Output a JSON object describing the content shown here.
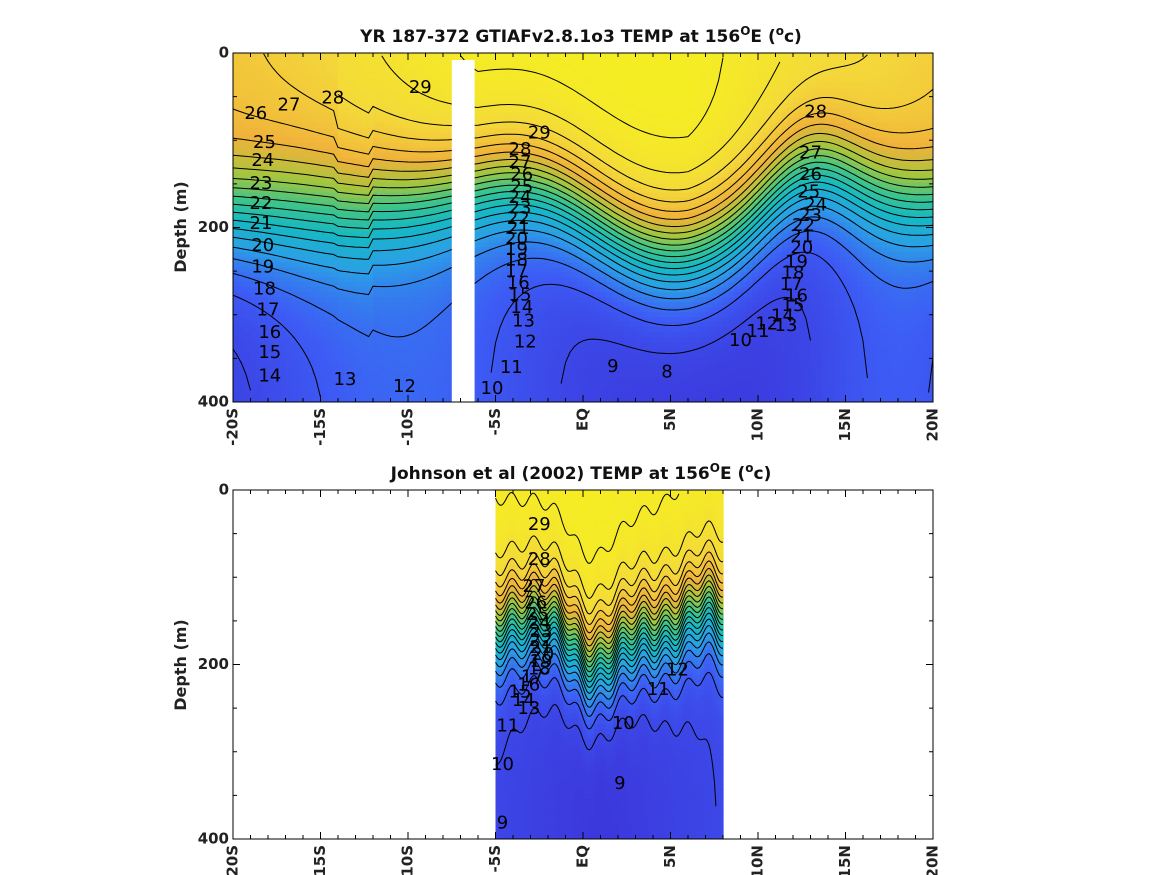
{
  "colors": {
    "colormap": [
      "#3b2fd6",
      "#3d5cf5",
      "#2ba0e6",
      "#16b8c4",
      "#3cc48a",
      "#a3c63e",
      "#f0b23a",
      "#f4d93a",
      "#f5f020"
    ],
    "contour": "#000000",
    "mask": "#ffffff",
    "axes": "#000000"
  },
  "chart_data": [
    {
      "type": "heatmap",
      "title": "YR 187-372 GTIAFv2.8.1o3 TEMP at 156",
      "title_sup": "O",
      "title_tail": "E (",
      "title_unit_sup": "o",
      "title_unit_tail": "c)",
      "xlabel": "",
      "ylabel": "Depth (m)",
      "xlim": [
        -20,
        20
      ],
      "ylim": [
        400,
        0
      ],
      "x_ticks": [
        -20,
        -15,
        -10,
        -5,
        0,
        5,
        10,
        15,
        20
      ],
      "x_tick_labels": [
        "-20S",
        "-15S",
        "-10S",
        "-5S",
        "EQ",
        "5N",
        "10N",
        "15N",
        "20N"
      ],
      "y_ticks": [
        0,
        200,
        400
      ],
      "y_tick_labels": [
        "0",
        "200",
        "400"
      ],
      "contour_interval": 1,
      "masked_x_range": [
        -7.5,
        -6.2
      ],
      "contour_labels": [
        {
          "x": -18.7,
          "y": 70,
          "v": "26"
        },
        {
          "x": -16.8,
          "y": 60,
          "v": "27"
        },
        {
          "x": -14.3,
          "y": 52,
          "v": "28"
        },
        {
          "x": -9.3,
          "y": 40,
          "v": "29"
        },
        {
          "x": -18.2,
          "y": 103,
          "v": "25"
        },
        {
          "x": -18.3,
          "y": 124,
          "v": "24"
        },
        {
          "x": -18.4,
          "y": 150,
          "v": "23"
        },
        {
          "x": -18.4,
          "y": 173,
          "v": "22"
        },
        {
          "x": -18.4,
          "y": 196,
          "v": "21"
        },
        {
          "x": -18.3,
          "y": 221,
          "v": "20"
        },
        {
          "x": -18.3,
          "y": 246,
          "v": "19"
        },
        {
          "x": -18.2,
          "y": 271,
          "v": "18"
        },
        {
          "x": -18.0,
          "y": 295,
          "v": "17"
        },
        {
          "x": -17.9,
          "y": 321,
          "v": "16"
        },
        {
          "x": -17.9,
          "y": 344,
          "v": "15"
        },
        {
          "x": -17.9,
          "y": 371,
          "v": "14"
        },
        {
          "x": -13.6,
          "y": 375,
          "v": "13"
        },
        {
          "x": -10.2,
          "y": 383,
          "v": "12"
        },
        {
          "x": -2.5,
          "y": 92,
          "v": "29"
        },
        {
          "x": -3.6,
          "y": 111,
          "v": "28"
        },
        {
          "x": -3.6,
          "y": 126,
          "v": "27"
        },
        {
          "x": -3.5,
          "y": 140,
          "v": "26"
        },
        {
          "x": -3.5,
          "y": 154,
          "v": "25"
        },
        {
          "x": -3.6,
          "y": 166,
          "v": "24"
        },
        {
          "x": -3.6,
          "y": 178,
          "v": "23"
        },
        {
          "x": -3.7,
          "y": 190,
          "v": "22"
        },
        {
          "x": -3.7,
          "y": 202,
          "v": "21"
        },
        {
          "x": -3.8,
          "y": 214,
          "v": "20"
        },
        {
          "x": -3.8,
          "y": 226,
          "v": "19"
        },
        {
          "x": -3.8,
          "y": 238,
          "v": "18"
        },
        {
          "x": -3.8,
          "y": 251,
          "v": "17"
        },
        {
          "x": -3.7,
          "y": 264,
          "v": "16"
        },
        {
          "x": -3.6,
          "y": 278,
          "v": "15"
        },
        {
          "x": -3.5,
          "y": 292,
          "v": "14"
        },
        {
          "x": -3.4,
          "y": 308,
          "v": "13"
        },
        {
          "x": -3.3,
          "y": 332,
          "v": "12"
        },
        {
          "x": -4.1,
          "y": 361,
          "v": "11"
        },
        {
          "x": -5.2,
          "y": 385,
          "v": "10"
        },
        {
          "x": 1.7,
          "y": 360,
          "v": "9"
        },
        {
          "x": 4.8,
          "y": 366,
          "v": "8"
        },
        {
          "x": 13.3,
          "y": 68,
          "v": "28"
        },
        {
          "x": 13.0,
          "y": 115,
          "v": "27"
        },
        {
          "x": 13.0,
          "y": 140,
          "v": "26"
        },
        {
          "x": 12.9,
          "y": 160,
          "v": "25"
        },
        {
          "x": 13.3,
          "y": 175,
          "v": "24"
        },
        {
          "x": 13.0,
          "y": 187,
          "v": "23"
        },
        {
          "x": 12.6,
          "y": 198,
          "v": "22"
        },
        {
          "x": 12.5,
          "y": 211,
          "v": "21"
        },
        {
          "x": 12.5,
          "y": 224,
          "v": "20"
        },
        {
          "x": 12.2,
          "y": 240,
          "v": "19"
        },
        {
          "x": 12.0,
          "y": 253,
          "v": "18"
        },
        {
          "x": 11.9,
          "y": 266,
          "v": "17"
        },
        {
          "x": 12.2,
          "y": 279,
          "v": "16"
        },
        {
          "x": 12.0,
          "y": 290,
          "v": "15"
        },
        {
          "x": 11.4,
          "y": 302,
          "v": "14"
        },
        {
          "x": 11.6,
          "y": 313,
          "v": "13"
        },
        {
          "x": 10.5,
          "y": 311,
          "v": "12"
        },
        {
          "x": 10.0,
          "y": 320,
          "v": "11"
        },
        {
          "x": 9.0,
          "y": 330,
          "v": "10"
        }
      ]
    },
    {
      "type": "heatmap",
      "title": "Johnson et al (2002) TEMP at 156",
      "title_sup": "O",
      "title_tail": "E (",
      "title_unit_sup": "o",
      "title_unit_tail": "c)",
      "xlabel": "",
      "ylabel": "Depth (m)",
      "xlim": [
        -20,
        20
      ],
      "ylim": [
        400,
        0
      ],
      "x_ticks": [
        -20,
        -15,
        -10,
        -5,
        0,
        5,
        10,
        15,
        20
      ],
      "x_tick_labels": [
        "-20S",
        "-15S",
        "-10S",
        "-5S",
        "EQ",
        "5N",
        "10N",
        "15N",
        "20N"
      ],
      "y_ticks": [
        0,
        200,
        400
      ],
      "y_tick_labels": [
        "0",
        "200",
        "400"
      ],
      "contour_interval": 1,
      "data_x_range": [
        -5.0,
        8.0
      ],
      "contour_labels": [
        {
          "x": -2.5,
          "y": 40,
          "v": "29"
        },
        {
          "x": -2.5,
          "y": 80,
          "v": "28"
        },
        {
          "x": -2.8,
          "y": 111,
          "v": "27"
        },
        {
          "x": -2.7,
          "y": 130,
          "v": "26"
        },
        {
          "x": -2.6,
          "y": 143,
          "v": "25"
        },
        {
          "x": -2.5,
          "y": 153,
          "v": "24"
        },
        {
          "x": -2.4,
          "y": 163,
          "v": "23"
        },
        {
          "x": -2.4,
          "y": 173,
          "v": "22"
        },
        {
          "x": -2.4,
          "y": 181,
          "v": "21"
        },
        {
          "x": -2.3,
          "y": 189,
          "v": "20"
        },
        {
          "x": -2.4,
          "y": 197,
          "v": "19"
        },
        {
          "x": -2.5,
          "y": 206,
          "v": "18"
        },
        {
          "x": -2.9,
          "y": 215,
          "v": "17"
        },
        {
          "x": -3.1,
          "y": 224,
          "v": "16"
        },
        {
          "x": -3.6,
          "y": 232,
          "v": "15"
        },
        {
          "x": -3.4,
          "y": 242,
          "v": "14"
        },
        {
          "x": -3.1,
          "y": 251,
          "v": "13"
        },
        {
          "x": -4.3,
          "y": 271,
          "v": "11"
        },
        {
          "x": -4.6,
          "y": 315,
          "v": "10"
        },
        {
          "x": -4.6,
          "y": 382,
          "v": "9"
        },
        {
          "x": 5.4,
          "y": 207,
          "v": "12"
        },
        {
          "x": 4.3,
          "y": 229,
          "v": "11"
        },
        {
          "x": 2.3,
          "y": 268,
          "v": "10"
        },
        {
          "x": 2.1,
          "y": 337,
          "v": "9"
        }
      ]
    }
  ]
}
